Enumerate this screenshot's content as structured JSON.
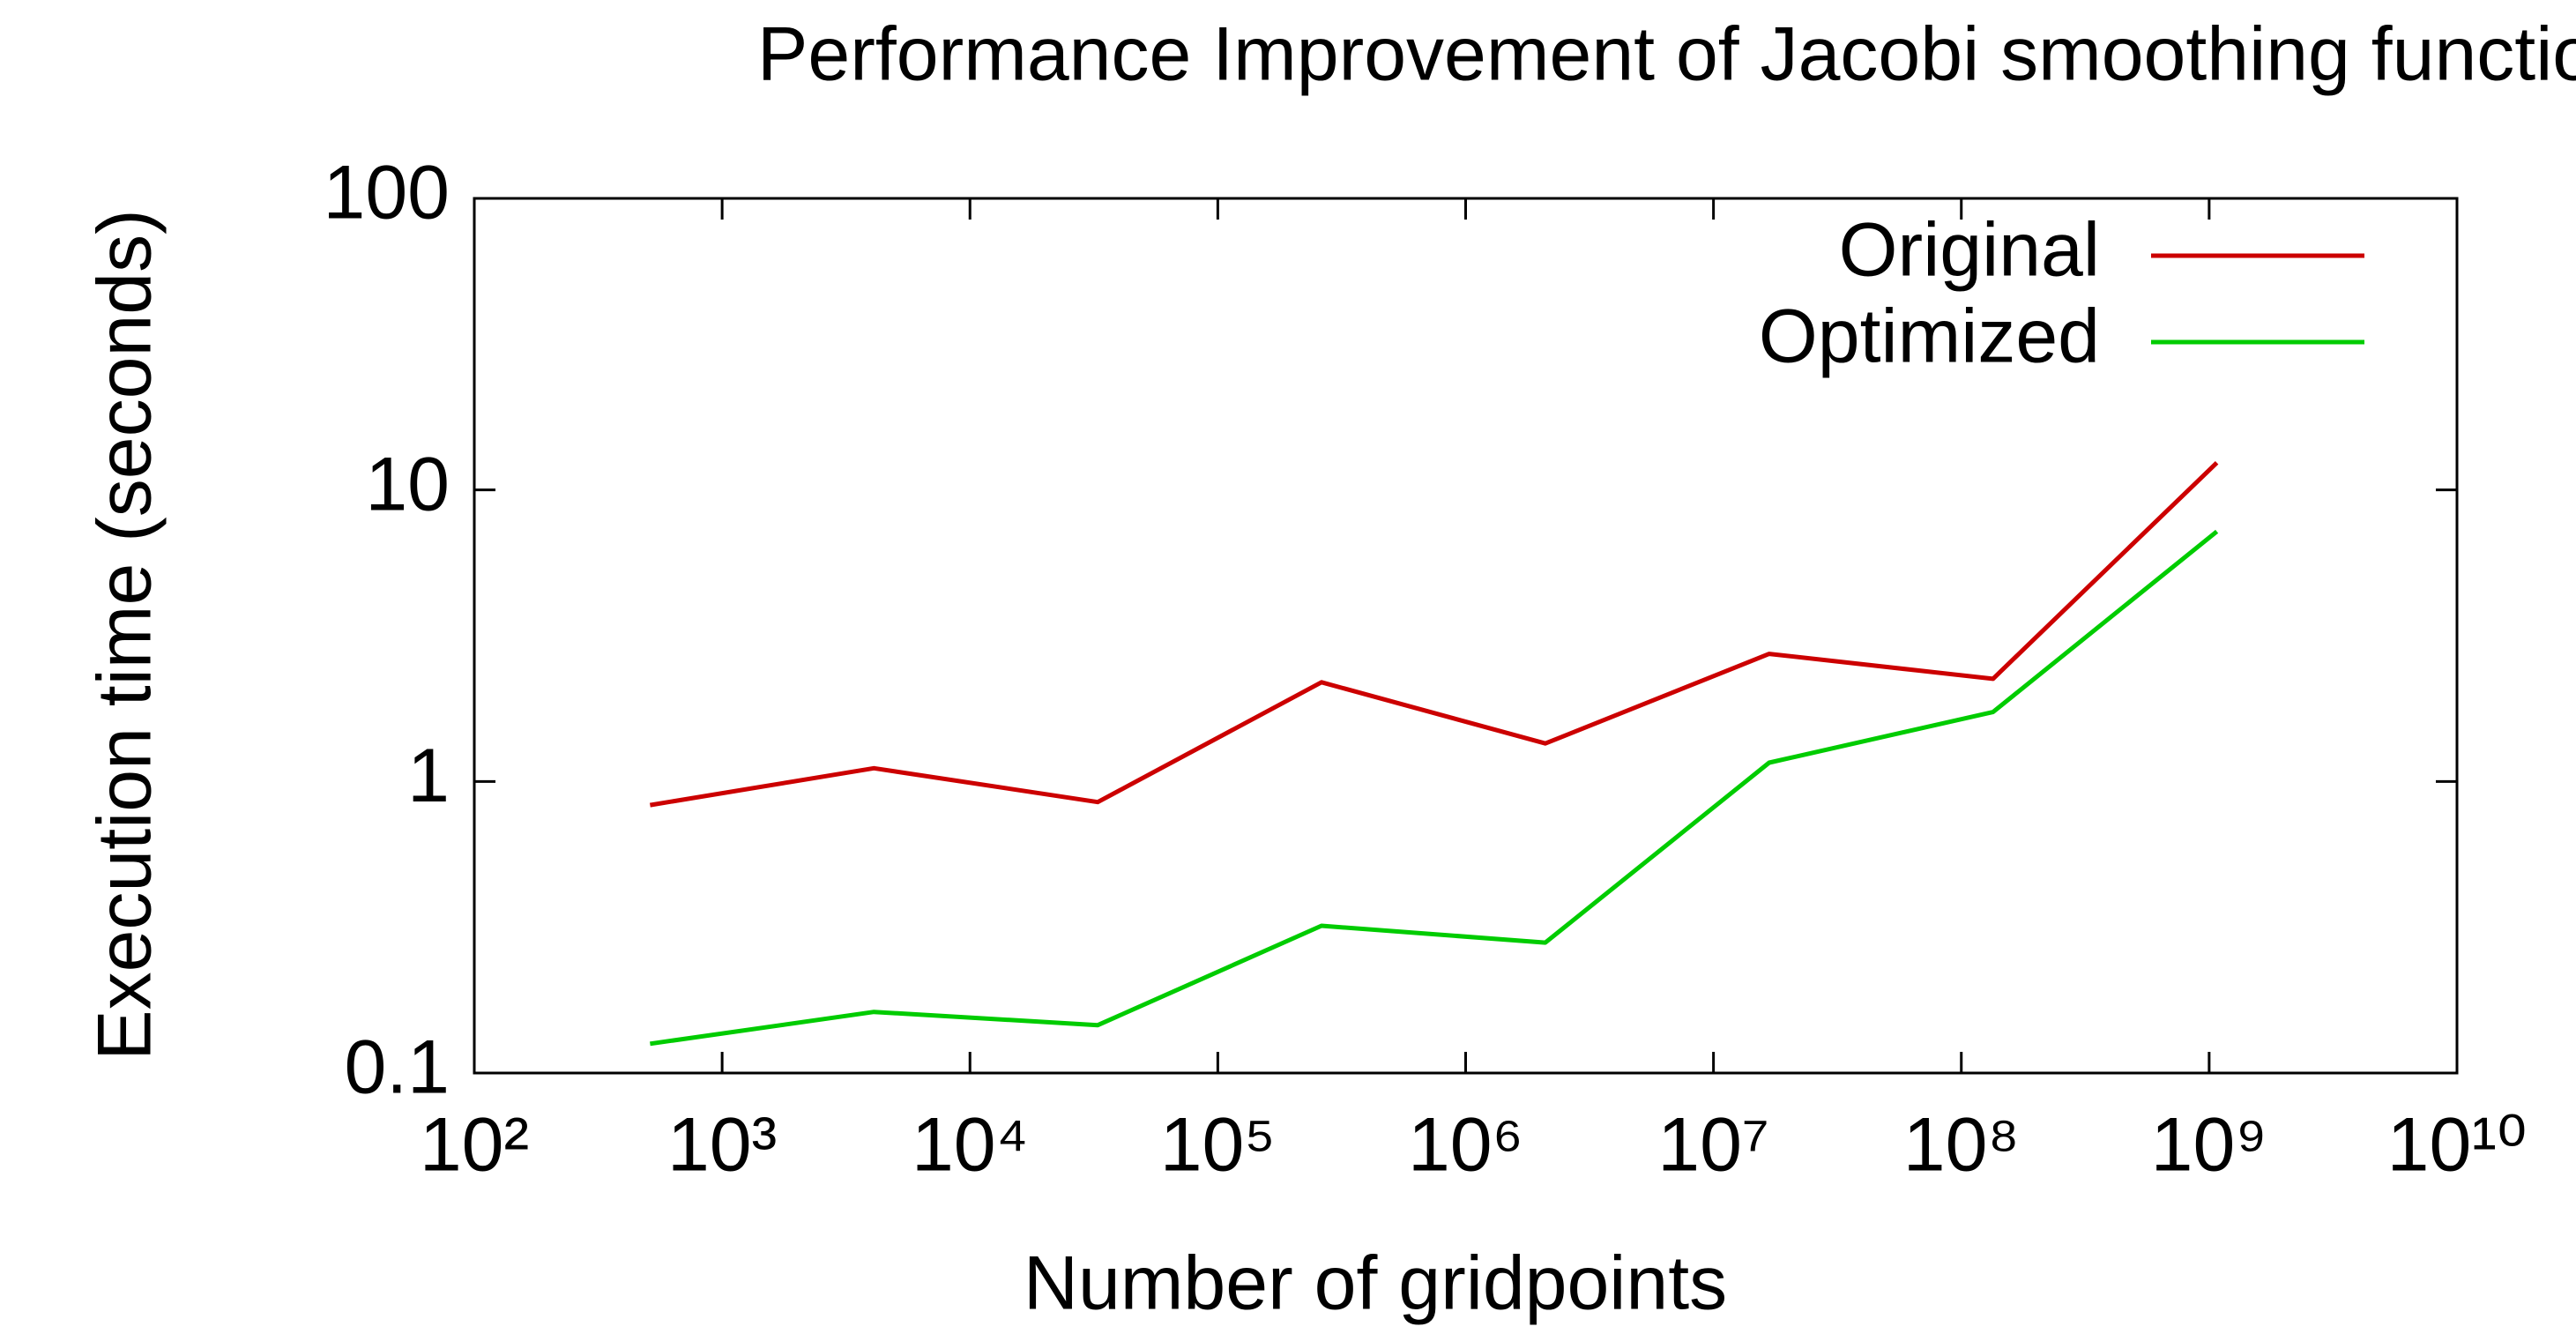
{
  "chart_data": {
    "type": "line",
    "title": "Performance Improvement of Jacobi smoothing function",
    "x_label": "Number of gridpoints",
    "y_label": "Execution time (seconds)",
    "x": [
      512,
      4096,
      32768,
      262144,
      2097152,
      16777216,
      134217728,
      1073741824
    ],
    "series": [
      {
        "name": "Original",
        "color": "#cc0000",
        "values": [
          0.83,
          1.11,
          0.85,
          2.19,
          1.35,
          2.74,
          2.25,
          12.4
        ]
      },
      {
        "name": "Optimized",
        "color": "#00cc00",
        "values": [
          0.126,
          0.162,
          0.146,
          0.32,
          0.28,
          1.16,
          1.73,
          7.2
        ]
      }
    ],
    "xlim": [
      100,
      10000000000
    ],
    "ylim": [
      0.1,
      100
    ],
    "xticks": [
      {
        "value": 100,
        "label": "10²"
      },
      {
        "value": 1000,
        "label": "10³"
      },
      {
        "value": 10000,
        "label": "10⁴"
      },
      {
        "value": 100000,
        "label": "10⁵"
      },
      {
        "value": 1000000,
        "label": "10⁶"
      },
      {
        "value": 10000000,
        "label": "10⁷"
      },
      {
        "value": 100000000,
        "label": "10⁸"
      },
      {
        "value": 1000000000,
        "label": "10⁹"
      },
      {
        "value": 10000000000,
        "label": "10¹⁰"
      }
    ],
    "yticks": [
      0.1,
      1,
      10,
      100
    ],
    "xscale": "log",
    "yscale": "log",
    "grid": false,
    "legend": "top right"
  }
}
